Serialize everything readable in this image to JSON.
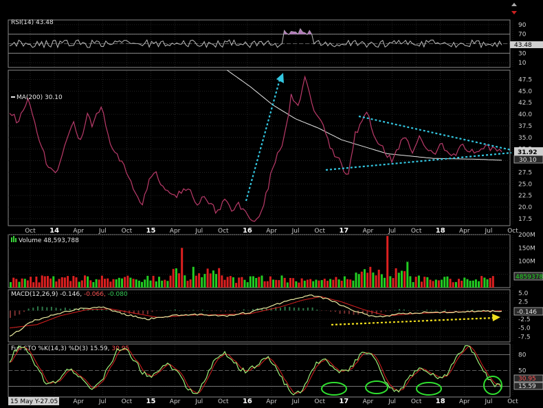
{
  "chart_data": [
    {
      "type": "line",
      "panel": "rsi",
      "title": "RSI(14) 43.48",
      "yticks": [
        90,
        70,
        50,
        30,
        10
      ],
      "ylim": [
        0,
        100
      ],
      "last_value": "43.48",
      "levels": [
        70,
        30
      ]
    },
    {
      "type": "line",
      "panel": "price",
      "series": [
        {
          "name": "MA(200) 30.10",
          "last_value": "30.10",
          "color": "#e8e8e8"
        }
      ],
      "yticks": [
        "47.5",
        "45.0",
        "42.5",
        "40.0",
        "37.5",
        "35.0",
        "32.5",
        "30.0",
        "27.5",
        "25.0",
        "22.5",
        "20.0",
        "17.5"
      ],
      "ylim": [
        16,
        49.5
      ],
      "last_price": "31.92",
      "price_color": "#d02020"
    },
    {
      "type": "bar",
      "panel": "volume",
      "title": "Volume 48,593,788",
      "yticks": [
        "200M",
        "150M",
        "100M",
        "50M"
      ],
      "ylim": [
        0,
        200
      ],
      "last_value": "48593788"
    },
    {
      "type": "line",
      "panel": "macd",
      "title": "MACD(12,26,9) -0.146, -0.066, -0.080",
      "title_parts": [
        "MACD(12,26,9) -0.146, ",
        "-0.066, ",
        "-0.080"
      ],
      "yticks": [
        "5.0",
        "2.5",
        "0.0",
        "-2.5",
        "-5.0",
        "-7.5"
      ],
      "ylim": [
        -9,
        6
      ],
      "last_value": "-0.146"
    },
    {
      "type": "line",
      "panel": "stochastic",
      "title": "Full STO %K(14,3) %D(3) 15.59, 30.95",
      "title_parts": [
        "Full STO %K(14,3) %D(3) ",
        "15.59, ",
        "30.95"
      ],
      "yticks": [
        "80",
        "50",
        "20"
      ],
      "ylim": [
        0,
        100
      ],
      "last_values": [
        "30.95",
        "15.59"
      ]
    }
  ],
  "x_axis": {
    "labels": [
      "Oct",
      "14",
      "Apr",
      "Jul",
      "Oct",
      "15",
      "Apr",
      "Jul",
      "Oct",
      "16",
      "Apr",
      "Jul",
      "Oct",
      "17",
      "Apr",
      "Jul",
      "Oct",
      "18",
      "Apr",
      "Jul",
      "Oct"
    ],
    "bottom_labels": [
      "Apr",
      "Jul",
      "Oct",
      "15",
      "Apr",
      "Jul",
      "Oct",
      "16",
      "Apr",
      "Jul",
      "Oct",
      "17",
      "Apr",
      "Jul",
      "Oct",
      "18",
      "Apr",
      "Jul",
      "Oct"
    ],
    "years": [
      "14",
      "15",
      "16",
      "17",
      "18"
    ]
  },
  "footer": {
    "date_label": "15 May Y-27.05"
  },
  "colors": {
    "up": "#22cc22",
    "down": "#dd2020",
    "ma": "#e8e8e8",
    "trend": "#33c6e0",
    "arrow_yellow": "#f2e01e",
    "circle": "#30e030"
  }
}
